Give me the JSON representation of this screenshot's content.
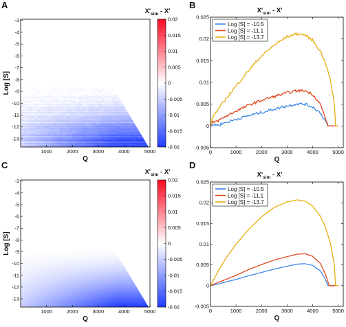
{
  "figure": {
    "panels": [
      {
        "label": "A",
        "kind": "heatmap",
        "colorbar_title": "X'sim - X'",
        "xlabel": "Q",
        "ylabel": "Log [S]"
      },
      {
        "label": "B",
        "kind": "line",
        "title": "X'sim - X'",
        "xlabel": "Q"
      },
      {
        "label": "C",
        "kind": "heatmap",
        "colorbar_title": "X'sim - X'",
        "xlabel": "Q",
        "ylabel": "Log [S]"
      },
      {
        "label": "D",
        "kind": "line",
        "title": "X'sim - X'",
        "xlabel": "Q"
      }
    ]
  },
  "colors": {
    "series_1": "#3a86e8",
    "series_2": "#e0461b",
    "series_3": "#e6ad12",
    "heat_neg": "#1f3cff",
    "heat_pos": "#ff0a22"
  },
  "chart_data": [
    {
      "type": "heatmap",
      "panel": "A",
      "title": "",
      "xlabel": "Q",
      "ylabel": "Log [S]",
      "x_ticks": [
        "1000",
        "2000",
        "3000",
        "4000",
        "5000"
      ],
      "y_ticks": [
        "-3",
        "-4",
        "-5",
        "-6",
        "-7",
        "-8",
        "-9",
        "-10",
        "-11",
        "-12",
        "-13"
      ],
      "xlim": [
        0,
        5000
      ],
      "ylim": [
        -13.7,
        -2.9
      ],
      "colorbar": {
        "label_main": "X'",
        "label_sub": "sim",
        "label_tail": "- X'",
        "range": [
          -0.02,
          0.02
        ],
        "ticks": [
          "0.02",
          "0.015",
          "0.01",
          "0.005",
          "0",
          "-0.005",
          "-0.01",
          "-0.015",
          "-0.02"
        ]
      },
      "noisy": true
    },
    {
      "type": "line",
      "panel": "B",
      "title_main": "X'",
      "title_sub": "sim",
      "title_tail": "- X'",
      "xlabel": "Q",
      "ylabel": "",
      "xlim": [
        0,
        5200
      ],
      "ylim": [
        -0.005,
        0.025
      ],
      "x_ticks": [
        "0",
        "1000",
        "2000",
        "3000",
        "4000",
        "5000"
      ],
      "y_ticks": [
        "-0.005",
        "0",
        "0.005",
        "0.01",
        "0.015",
        "0.02",
        "0.025"
      ],
      "legend": "top-left",
      "series": [
        {
          "name": "Log [S] = -10.5",
          "x": [
            0,
            100,
            300,
            600,
            1000,
            1500,
            2000,
            2500,
            3000,
            3400,
            3700,
            4000,
            4300,
            4500,
            4600,
            5000
          ],
          "y": [
            0,
            0.0003,
            0.0002,
            0.0008,
            0.0015,
            0.0024,
            0.0031,
            0.0039,
            0.0046,
            0.0051,
            0.005,
            0.0044,
            0.003,
            0.0012,
            0,
            0
          ]
        },
        {
          "name": "Log [S] = -11.1",
          "x": [
            0,
            100,
            300,
            600,
            1000,
            1500,
            2000,
            2500,
            3000,
            3400,
            3700,
            4000,
            4300,
            4500,
            4600,
            5000
          ],
          "y": [
            0,
            0.0008,
            0.0012,
            0.0022,
            0.0034,
            0.0048,
            0.0059,
            0.0068,
            0.0076,
            0.0081,
            0.0081,
            0.0073,
            0.005,
            0.0018,
            0,
            0
          ]
        },
        {
          "name": "Log [S] = -13.7",
          "x": [
            0,
            100,
            300,
            600,
            1000,
            1500,
            2000,
            2500,
            3000,
            3400,
            3700,
            4000,
            4300,
            4500,
            4700,
            4850,
            4900,
            5000
          ],
          "y": [
            0,
            0.0022,
            0.0038,
            0.0062,
            0.0092,
            0.0128,
            0.0161,
            0.0186,
            0.0205,
            0.0212,
            0.0209,
            0.0197,
            0.0172,
            0.0146,
            0.0105,
            0.0052,
            0,
            0
          ]
        }
      ],
      "noisy": true
    },
    {
      "type": "heatmap",
      "panel": "C",
      "title": "",
      "xlabel": "Q",
      "ylabel": "Log [S]",
      "x_ticks": [
        "1000",
        "2000",
        "3000",
        "4000",
        "5000"
      ],
      "y_ticks": [
        "-3",
        "-4",
        "-5",
        "-6",
        "-7",
        "-8",
        "-9",
        "-10",
        "-11",
        "-12",
        "-13"
      ],
      "xlim": [
        0,
        5000
      ],
      "ylim": [
        -13.7,
        -2.9
      ],
      "colorbar": {
        "label_main": "X'",
        "label_sub": "sim",
        "label_tail": "- X'",
        "range": [
          -0.02,
          0.02
        ],
        "ticks": [
          "0.02",
          "0.015",
          "0.01",
          "0.005",
          "0",
          "-0.005",
          "-0.01",
          "-0.015",
          "-0.02"
        ]
      },
      "noisy": false
    },
    {
      "type": "line",
      "panel": "D",
      "title_main": "X'",
      "title_sub": "sim",
      "title_tail": "- X'",
      "xlabel": "Q",
      "ylabel": "",
      "xlim": [
        0,
        5200
      ],
      "ylim": [
        -0.005,
        0.025
      ],
      "x_ticks": [
        "0",
        "1000",
        "2000",
        "3000",
        "4000",
        "5000"
      ],
      "y_ticks": [
        "-0.005",
        "0",
        "0.005",
        "0.01",
        "0.015",
        "0.02",
        "0.025"
      ],
      "legend": "top-left",
      "series": [
        {
          "name": "Log [S] = -10.5",
          "x": [
            0,
            300,
            600,
            1000,
            1500,
            2000,
            2500,
            3000,
            3400,
            3700,
            4000,
            4300,
            4500,
            4600,
            5000
          ],
          "y": [
            0,
            0.0004,
            0.0009,
            0.0015,
            0.0024,
            0.0032,
            0.004,
            0.0047,
            0.0052,
            0.0053,
            0.0049,
            0.0036,
            0.0015,
            0,
            0
          ]
        },
        {
          "name": "Log [S] = -11.1",
          "x": [
            0,
            300,
            600,
            1000,
            1500,
            2000,
            2500,
            3000,
            3400,
            3700,
            4000,
            4300,
            4500,
            4650,
            5000
          ],
          "y": [
            0,
            0.0008,
            0.0015,
            0.0025,
            0.0039,
            0.0051,
            0.0062,
            0.007,
            0.0076,
            0.0077,
            0.0071,
            0.0054,
            0.0028,
            0,
            0
          ]
        },
        {
          "name": "Log [S] = -13.7",
          "x": [
            0,
            300,
            600,
            1000,
            1500,
            2000,
            2500,
            3000,
            3400,
            3700,
            4000,
            4300,
            4500,
            4700,
            4850,
            4900,
            5000
          ],
          "y": [
            0,
            0.0035,
            0.0066,
            0.01,
            0.0136,
            0.0166,
            0.0189,
            0.0202,
            0.0207,
            0.0204,
            0.0192,
            0.0168,
            0.0142,
            0.0102,
            0.005,
            0,
            0
          ]
        }
      ],
      "noisy": false
    }
  ]
}
